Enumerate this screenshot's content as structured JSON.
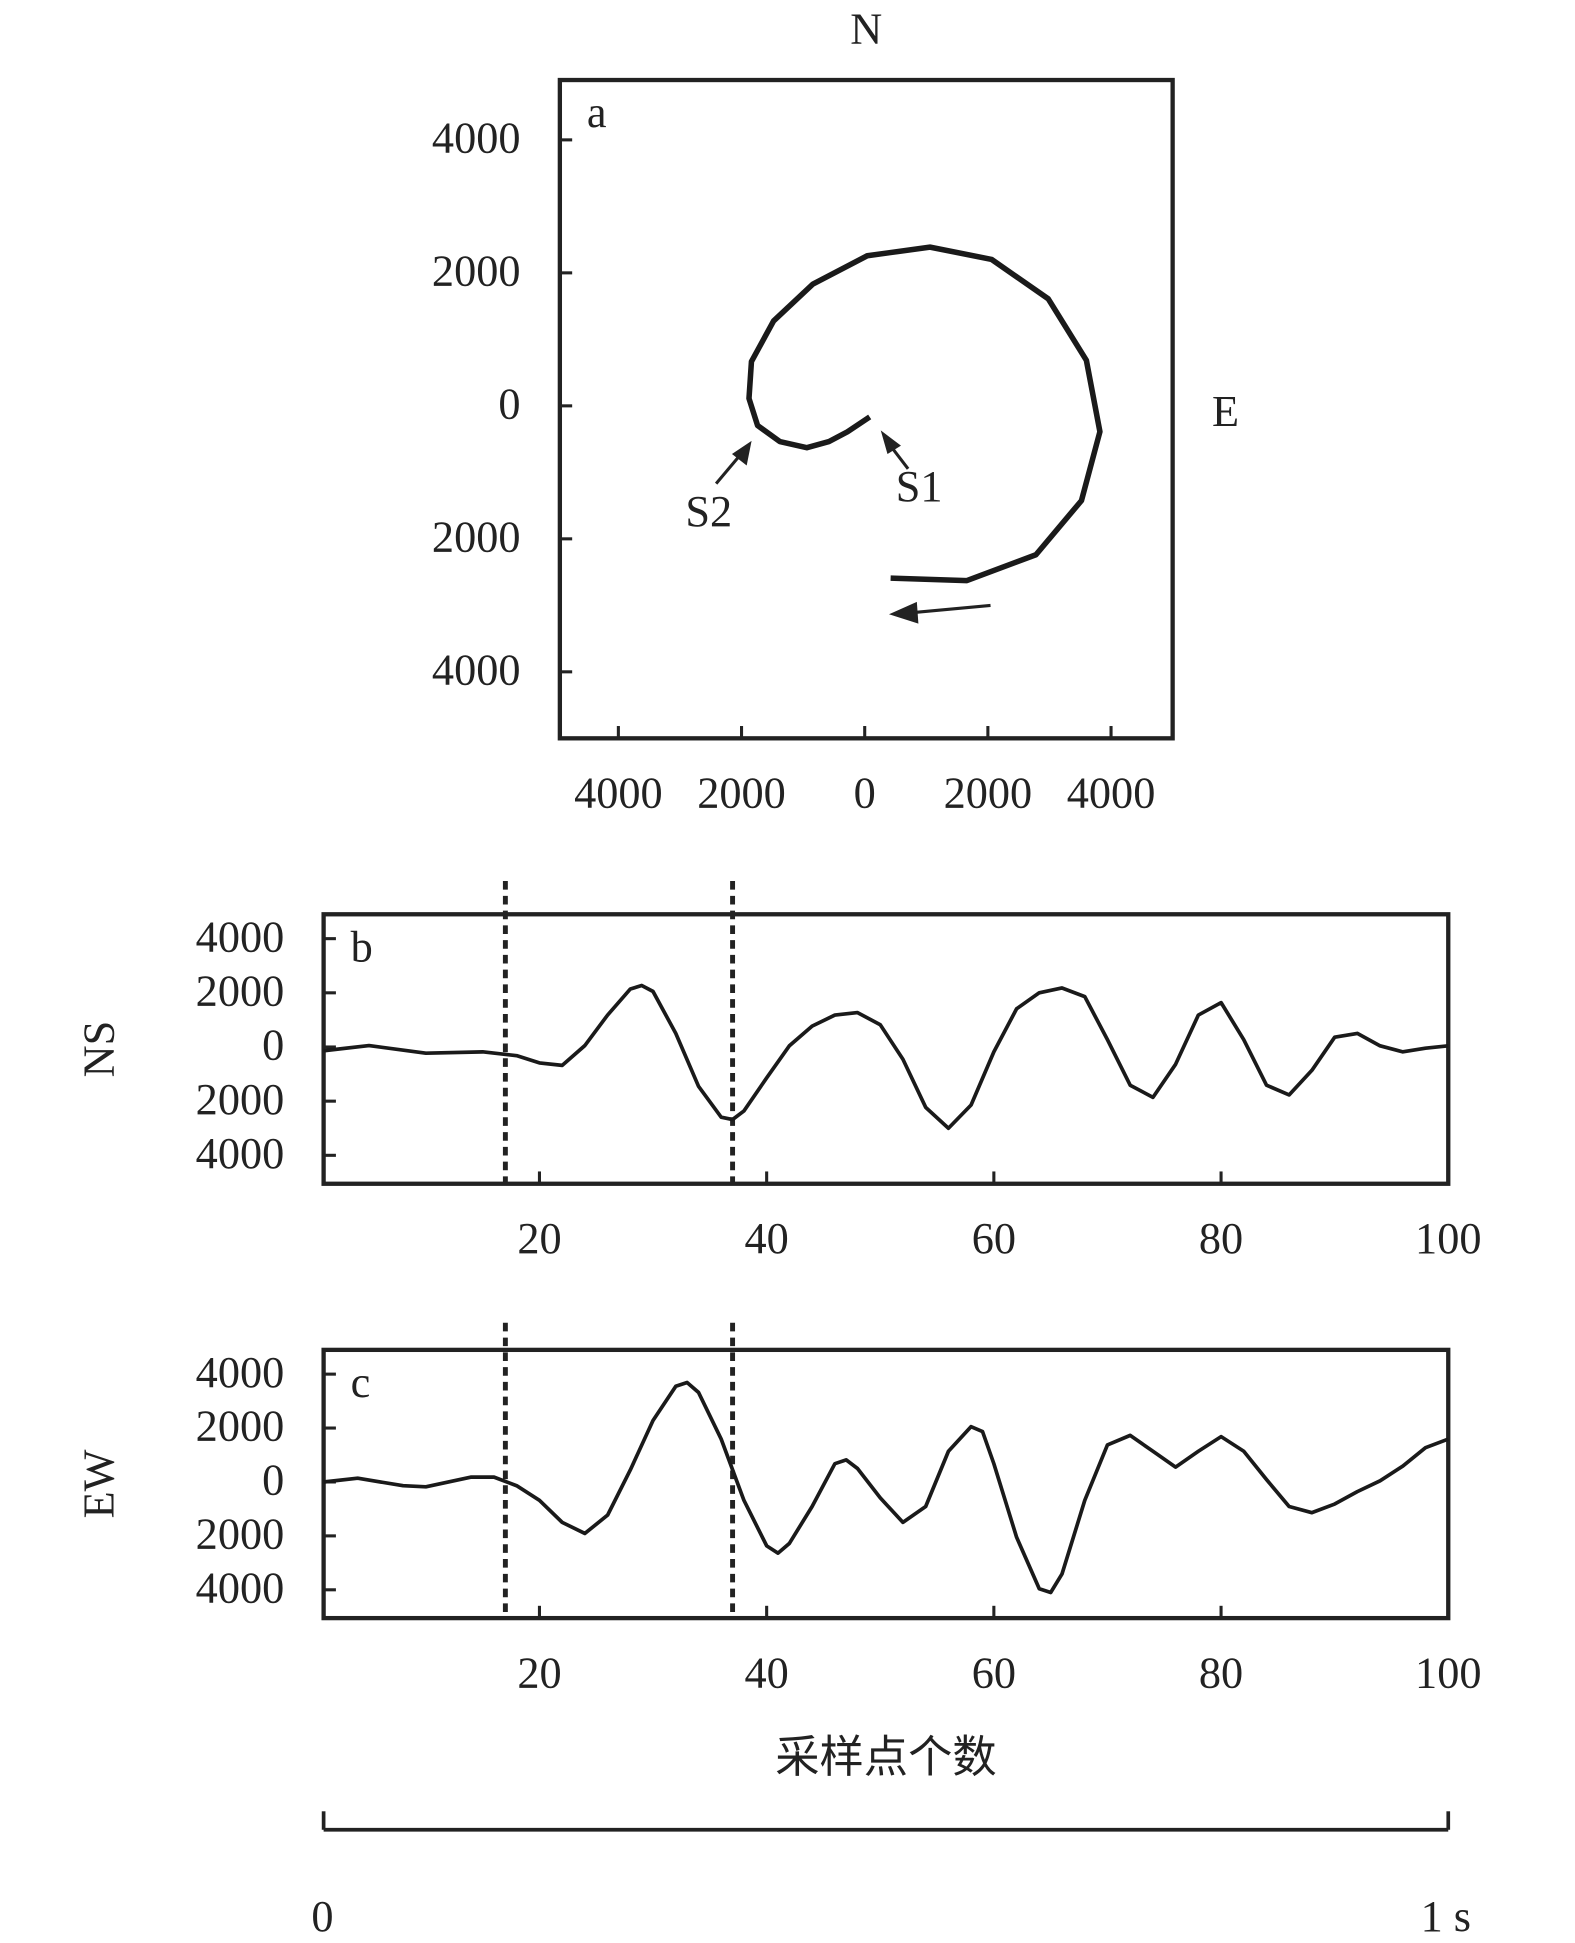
{
  "chart_data": [
    {
      "type": "line",
      "panel_label": "a",
      "north_label": "N",
      "east_label": "E",
      "annotations": [
        "S1",
        "S2"
      ],
      "x": [
        80,
        -280,
        -580,
        -940,
        -1380,
        -1740,
        -1880,
        -1840,
        -1480,
        -840,
        40,
        1060,
        2060,
        2980,
        3600,
        3820,
        3520,
        2780,
        1660,
        420
      ],
      "values": [
        -167,
        -390,
        -537,
        -630,
        -537,
        -296,
        111,
        666,
        1277,
        1832,
        2257,
        2387,
        2202,
        1610,
        685,
        -389,
        -1425,
        -2239,
        -2627,
        -2590
      ],
      "color": "#1a1a1a",
      "xlim": [
        -4950,
        5000
      ],
      "xticks": [
        {
          "value": -4000,
          "label": "4000"
        },
        {
          "value": -2000,
          "label": "2000"
        },
        0,
        2000,
        4000
      ],
      "ylim": [
        -5000,
        4900
      ],
      "yticks": [
        4000,
        2000,
        0,
        {
          "value": -2000,
          "label": "2000"
        },
        {
          "value": -4000,
          "label": "4000"
        }
      ]
    },
    {
      "type": "line",
      "panel_label": "b",
      "ylabel": "NS",
      "x": [
        1,
        5,
        10,
        15,
        18,
        20,
        22,
        24,
        26,
        28,
        29,
        30,
        32,
        34,
        36,
        37,
        38,
        40,
        42,
        44,
        46,
        48,
        50,
        52,
        54,
        56,
        58,
        60,
        62,
        64,
        66,
        68,
        70,
        72,
        74,
        76,
        78,
        80,
        82,
        84,
        86,
        88,
        90,
        92,
        94,
        96,
        98,
        100
      ],
      "values": [
        -140,
        50,
        -230,
        -180,
        -320,
        -590,
        -680,
        50,
        1180,
        2140,
        2270,
        2050,
        500,
        -1450,
        -2590,
        -2680,
        -2360,
        -1140,
        45,
        770,
        1180,
        1270,
        820,
        -450,
        -2230,
        -3000,
        -2140,
        -180,
        1410,
        2000,
        2180,
        1860,
        270,
        -1410,
        -1860,
        -640,
        1180,
        1640,
        270,
        -1410,
        -1770,
        -860,
        360,
        500,
        45,
        -180,
        -45,
        45
      ],
      "color": "#1a1a1a",
      "markers_x": [
        17,
        37
      ],
      "xlim": [
        1,
        100
      ],
      "xticks": [
        20,
        40,
        60,
        80,
        100
      ],
      "ylim": [
        -5050,
        4900
      ],
      "yticks": [
        4000,
        2000,
        0,
        {
          "value": -2000,
          "label": "2000"
        },
        {
          "value": -4000,
          "label": "4000"
        }
      ]
    },
    {
      "type": "line",
      "panel_label": "c",
      "ylabel": "EW",
      "xlabel": "采样点个数",
      "x": [
        1,
        4,
        8,
        10,
        14,
        16,
        18,
        20,
        22,
        24,
        26,
        28,
        30,
        32,
        33,
        34,
        36,
        38,
        40,
        41,
        42,
        44,
        46,
        47,
        48,
        50,
        52,
        54,
        56,
        58,
        59,
        60,
        62,
        64,
        65,
        66,
        68,
        70,
        72,
        74,
        76,
        78,
        80,
        82,
        84,
        86,
        88,
        90,
        92,
        94,
        96,
        98,
        100
      ],
      "values": [
        0,
        140,
        -140,
        -180,
        180,
        180,
        -140,
        -680,
        -1500,
        -1910,
        -1230,
        450,
        2280,
        3550,
        3690,
        3320,
        1590,
        -680,
        -2370,
        -2640,
        -2280,
        -910,
        680,
        820,
        500,
        -590,
        -1500,
        -910,
        1140,
        2050,
        1870,
        680,
        -2050,
        -3960,
        -4100,
        -3410,
        -680,
        1370,
        1730,
        1140,
        550,
        1140,
        1680,
        1140,
        90,
        -910,
        -1140,
        -820,
        -360,
        45,
        590,
        1270,
        1590
      ],
      "color": "#1a1a1a",
      "markers_x": [
        17,
        37
      ],
      "xlim": [
        1,
        100
      ],
      "xticks": [
        20,
        40,
        60,
        80,
        100
      ],
      "ylim": [
        -5050,
        4900
      ],
      "yticks": [
        4000,
        2000,
        0,
        {
          "value": -2000,
          "label": "2000"
        },
        {
          "value": -4000,
          "label": "4000"
        }
      ]
    }
  ],
  "scale_bar": {
    "labels": [
      "0",
      "1 s"
    ]
  }
}
